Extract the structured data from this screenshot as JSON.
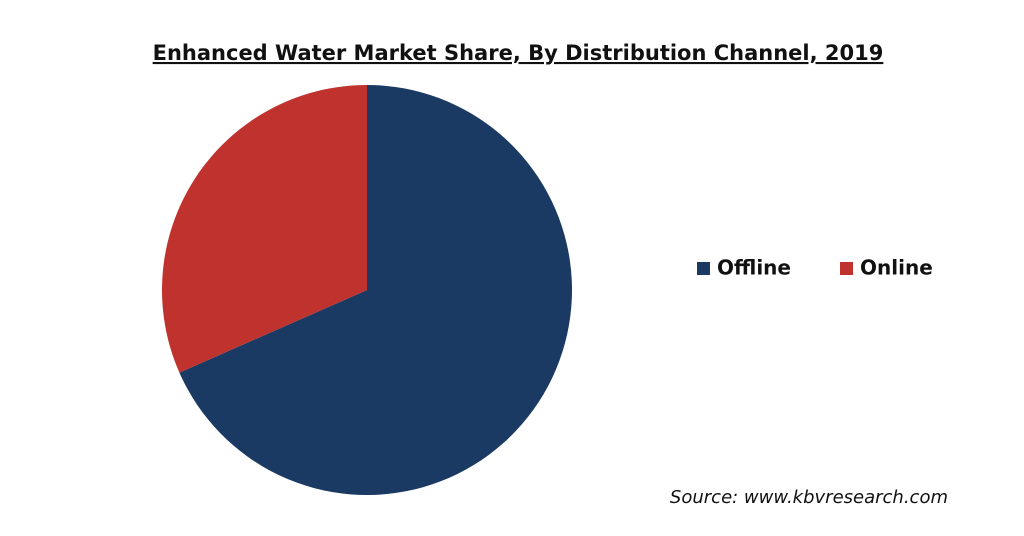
{
  "chart_data": {
    "type": "pie",
    "title": "Enhanced Water Market Share, By Distribution Channel, 2019",
    "categories": [
      "Offline",
      "Online"
    ],
    "values": [
      68.4,
      31.6
    ],
    "colors": [
      "#1b3a63",
      "#c0322d"
    ],
    "legend": "right",
    "source": "Source: www.kbvresearch.com"
  }
}
